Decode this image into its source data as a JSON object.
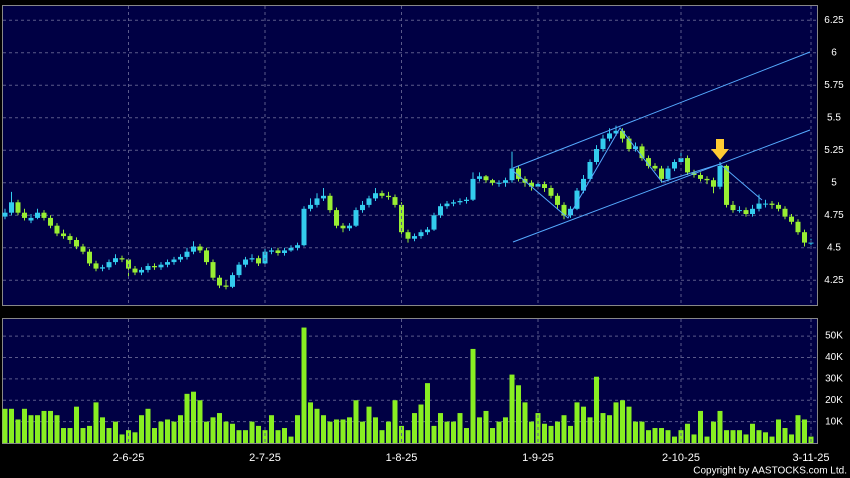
{
  "chart_data": [
    {
      "type": "candlestick",
      "open": [
        4.74,
        4.77,
        4.85,
        4.77,
        4.71,
        4.73,
        4.77,
        4.73,
        4.67,
        4.61,
        4.59,
        4.56,
        4.51,
        4.47,
        4.38,
        4.34,
        4.35,
        4.39,
        4.42,
        4.41,
        4.34,
        4.31,
        4.33,
        4.36,
        4.35,
        4.37,
        4.39,
        4.41,
        4.43,
        4.47,
        4.51,
        4.48,
        4.39,
        4.27,
        4.21,
        4.2,
        4.29,
        4.37,
        4.41,
        4.42,
        4.38,
        4.47,
        4.48,
        4.46,
        4.48,
        4.5,
        4.52,
        4.8,
        4.83,
        4.88,
        4.9,
        4.79,
        4.67,
        4.65,
        4.67,
        4.79,
        4.83,
        4.88,
        4.92,
        4.9,
        4.89,
        4.83,
        4.62,
        4.57,
        4.59,
        4.62,
        4.64,
        4.75,
        4.82,
        4.84,
        4.85,
        4.86,
        4.87,
        5.03,
        5.05,
        5.02,
        5.0,
        5.0,
        5.02,
        5.11,
        5.03,
        5.0,
        4.97,
        4.99,
        4.96,
        4.9,
        4.83,
        4.75,
        4.8,
        4.94,
        5.03,
        5.16,
        5.26,
        5.34,
        5.38,
        5.4,
        5.34,
        5.26,
        5.28,
        5.19,
        5.13,
        5.11,
        5.03,
        5.11,
        5.16,
        5.19,
        5.08,
        5.06,
        5.03,
        5.02,
        4.97,
        5.13,
        4.83,
        4.79,
        4.79,
        4.76,
        4.8,
        4.84,
        4.84,
        4.83,
        4.8,
        4.74,
        4.7,
        4.62,
        4.54
      ],
      "high": [
        4.8,
        4.93,
        4.87,
        4.8,
        4.76,
        4.8,
        4.79,
        4.75,
        4.69,
        4.64,
        4.61,
        4.58,
        4.53,
        4.49,
        4.4,
        4.37,
        4.41,
        4.45,
        4.44,
        4.42,
        4.36,
        4.35,
        4.38,
        4.38,
        4.39,
        4.41,
        4.43,
        4.45,
        4.5,
        4.55,
        4.53,
        4.5,
        4.41,
        4.29,
        4.25,
        4.31,
        4.39,
        4.43,
        4.45,
        4.44,
        4.51,
        4.5,
        4.5,
        4.5,
        4.52,
        4.54,
        4.82,
        4.88,
        4.92,
        4.96,
        4.92,
        4.81,
        4.69,
        4.69,
        4.81,
        4.86,
        4.9,
        4.96,
        4.94,
        4.93,
        4.91,
        4.85,
        4.64,
        4.61,
        4.64,
        4.66,
        4.77,
        4.84,
        4.86,
        4.87,
        4.88,
        4.89,
        5.08,
        5.08,
        5.06,
        5.03,
        5.02,
        5.04,
        5.24,
        5.13,
        5.05,
        5.02,
        5.02,
        5.01,
        4.98,
        4.92,
        4.85,
        4.82,
        4.96,
        5.06,
        5.18,
        5.29,
        5.37,
        5.42,
        5.44,
        5.42,
        5.36,
        5.31,
        5.3,
        5.21,
        5.15,
        5.13,
        5.13,
        5.18,
        5.23,
        5.21,
        5.1,
        5.08,
        5.05,
        5.04,
        5.16,
        5.14,
        4.86,
        4.82,
        4.81,
        4.83,
        4.91,
        4.87,
        4.86,
        4.85,
        4.82,
        4.76,
        4.72,
        4.64,
        4.57
      ],
      "low": [
        4.72,
        4.75,
        4.75,
        4.71,
        4.69,
        4.72,
        4.71,
        4.65,
        4.59,
        4.57,
        4.53,
        4.49,
        4.45,
        4.36,
        4.32,
        4.32,
        4.33,
        4.37,
        4.39,
        4.26,
        4.29,
        4.29,
        4.31,
        4.33,
        4.33,
        4.35,
        4.37,
        4.39,
        4.41,
        4.45,
        4.46,
        4.37,
        4.25,
        4.19,
        4.18,
        4.19,
        4.27,
        4.35,
        4.39,
        4.36,
        4.37,
        4.45,
        4.44,
        4.44,
        4.47,
        4.48,
        4.51,
        4.78,
        4.81,
        4.86,
        4.77,
        4.65,
        4.62,
        4.63,
        4.66,
        4.77,
        4.81,
        4.86,
        4.88,
        4.87,
        4.81,
        4.58,
        4.54,
        4.55,
        4.57,
        4.6,
        4.63,
        4.73,
        4.8,
        4.82,
        4.83,
        4.84,
        4.86,
        5.01,
        5.0,
        4.98,
        4.97,
        4.97,
        5.0,
        5.01,
        4.97,
        4.94,
        4.95,
        4.93,
        4.88,
        4.8,
        4.72,
        4.73,
        4.79,
        4.92,
        5.01,
        5.14,
        5.24,
        5.32,
        5.36,
        5.31,
        5.24,
        5.24,
        5.17,
        5.11,
        5.09,
        5.0,
        5.01,
        5.09,
        5.14,
        5.06,
        5.04,
        5.01,
        4.99,
        4.92,
        4.95,
        4.81,
        4.77,
        4.77,
        4.74,
        4.74,
        4.78,
        4.81,
        4.8,
        4.78,
        4.72,
        4.68,
        4.6,
        4.51,
        4.52
      ],
      "close": [
        4.77,
        4.85,
        4.77,
        4.73,
        4.73,
        4.77,
        4.73,
        4.67,
        4.61,
        4.59,
        4.56,
        4.51,
        4.47,
        4.38,
        4.34,
        4.35,
        4.39,
        4.42,
        4.41,
        4.34,
        4.31,
        4.33,
        4.36,
        4.35,
        4.37,
        4.39,
        4.41,
        4.43,
        4.47,
        4.51,
        4.48,
        4.39,
        4.27,
        4.21,
        4.2,
        4.29,
        4.37,
        4.41,
        4.42,
        4.38,
        4.47,
        4.48,
        4.46,
        4.48,
        4.5,
        4.52,
        4.8,
        4.83,
        4.88,
        4.9,
        4.79,
        4.67,
        4.65,
        4.67,
        4.79,
        4.83,
        4.88,
        4.92,
        4.9,
        4.89,
        4.83,
        4.62,
        4.57,
        4.59,
        4.62,
        4.64,
        4.75,
        4.82,
        4.84,
        4.85,
        4.86,
        4.87,
        5.03,
        5.05,
        5.02,
        5.0,
        5.0,
        5.02,
        5.11,
        5.03,
        5.0,
        4.97,
        4.99,
        4.96,
        4.9,
        4.83,
        4.75,
        4.8,
        4.94,
        5.03,
        5.16,
        5.26,
        5.34,
        5.38,
        5.4,
        5.34,
        5.26,
        5.28,
        5.19,
        5.13,
        5.11,
        5.03,
        5.11,
        5.16,
        5.19,
        5.08,
        5.06,
        5.03,
        5.02,
        4.97,
        5.13,
        4.83,
        4.79,
        4.79,
        4.76,
        4.8,
        4.84,
        4.84,
        4.83,
        4.8,
        4.74,
        4.7,
        4.62,
        4.54,
        4.54
      ],
      "up_color": "#33ccee",
      "down_color": "#99ee33",
      "ylim": [
        4.06,
        6.36
      ],
      "yticks": [
        4.25,
        4.5,
        4.75,
        5,
        5.25,
        5.5,
        5.75,
        6,
        6.25
      ],
      "grid": true
    },
    {
      "type": "bar",
      "color": "#88ee22",
      "categories": [
        null,
        null,
        null,
        null,
        null,
        null,
        null,
        null,
        null,
        null,
        null,
        null,
        null,
        null,
        null,
        null,
        null,
        null,
        null,
        "2-6-25",
        null,
        null,
        null,
        null,
        null,
        null,
        null,
        null,
        null,
        null,
        null,
        null,
        null,
        null,
        null,
        null,
        null,
        null,
        null,
        null,
        "2-7-25",
        null,
        null,
        null,
        null,
        null,
        null,
        null,
        null,
        null,
        null,
        null,
        null,
        null,
        null,
        null,
        null,
        null,
        null,
        null,
        null,
        "1-8-25",
        null,
        null,
        null,
        null,
        null,
        null,
        null,
        null,
        null,
        null,
        null,
        null,
        null,
        null,
        null,
        null,
        null,
        null,
        null,
        null,
        "1-9-25",
        null,
        null,
        null,
        null,
        null,
        null,
        null,
        null,
        null,
        null,
        null,
        null,
        null,
        null,
        null,
        null,
        null,
        null,
        null,
        null,
        null,
        "2-10-25",
        null,
        null,
        null,
        null,
        null,
        null,
        null,
        null,
        null,
        null,
        null,
        null,
        null,
        null,
        null,
        null,
        null,
        null,
        null,
        "3-11-25"
      ],
      "values": [
        16000,
        16000,
        11000,
        16000,
        13000,
        13000,
        15000,
        15000,
        13000,
        7000,
        7000,
        17000,
        7000,
        8000,
        19000,
        12000,
        7000,
        10000,
        4000,
        6000,
        5000,
        13000,
        16000,
        7000,
        10000,
        11000,
        10000,
        13000,
        23000,
        24000,
        20000,
        10000,
        12000,
        14000,
        10000,
        9000,
        6000,
        6000,
        10000,
        8000,
        6000,
        13000,
        6000,
        7000,
        3000,
        13000,
        54000,
        19000,
        16000,
        13000,
        10000,
        11000,
        11000,
        12000,
        20000,
        10000,
        17000,
        12000,
        6000,
        10000,
        20000,
        8000,
        6000,
        14000,
        18000,
        28000,
        8000,
        14000,
        10000,
        10000,
        14000,
        7000,
        44000,
        12000,
        15000,
        7000,
        10000,
        12000,
        32000,
        27000,
        19000,
        10000,
        14000,
        9000,
        8000,
        10000,
        13000,
        8000,
        19000,
        17000,
        12000,
        31000,
        14000,
        13000,
        19000,
        20000,
        17000,
        10000,
        10000,
        6000,
        7000,
        7000,
        6000,
        3000,
        6000,
        9000,
        4000,
        15000,
        3000,
        10000,
        15000,
        6000,
        6000,
        6000,
        4000,
        9000,
        6000,
        5000,
        3000,
        11000,
        7000,
        4000,
        13000,
        11000,
        3000
      ],
      "ylim": [
        0,
        58000
      ],
      "yticks": [
        {
          "value": 10000,
          "label": "10K"
        },
        {
          "value": 20000,
          "label": "20K"
        },
        {
          "value": 30000,
          "label": "30K"
        },
        {
          "value": 40000,
          "label": "40K"
        },
        {
          "value": 50000,
          "label": "50K"
        }
      ],
      "grid": true,
      "annotation": "Copyright by AASTOCKS.com Ltd."
    }
  ]
}
